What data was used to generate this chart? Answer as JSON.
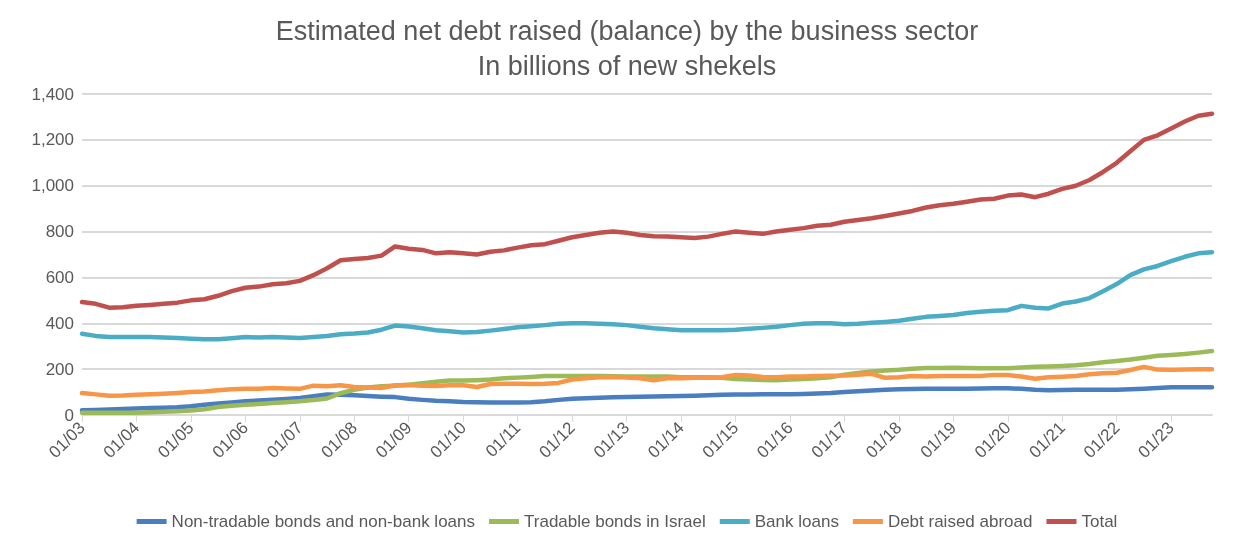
{
  "chart_data": {
    "type": "line",
    "title": "Estimated net debt raised (balance) by the business sector",
    "subtitle": "In billions of new shekels",
    "categories": [
      "01/03",
      null,
      null,
      null,
      "01/04",
      null,
      null,
      null,
      "01/05",
      null,
      null,
      null,
      "01/06",
      null,
      null,
      null,
      "01/07",
      null,
      null,
      null,
      "01/08",
      null,
      null,
      null,
      "01/09",
      null,
      null,
      null,
      "01/10",
      null,
      null,
      null,
      "01/11",
      null,
      null,
      null,
      "01/12",
      null,
      null,
      null,
      "01/13",
      null,
      null,
      null,
      "01/14",
      null,
      null,
      null,
      "01/15",
      null,
      null,
      null,
      "01/16",
      null,
      null,
      null,
      "01/17",
      null,
      null,
      null,
      "01/18",
      null,
      null,
      null,
      "01/19",
      null,
      null,
      null,
      "01/20",
      null,
      null,
      null,
      "01/21",
      null,
      null,
      null,
      "01/22",
      null,
      null,
      null,
      "01/23",
      null,
      null,
      null
    ],
    "series": [
      {
        "name": "Non-tradable bonds and non-bank loans",
        "color": "#4a7ebf",
        "values": [
          21,
          22,
          24,
          26,
          28,
          30,
          32,
          34,
          38,
          45,
          50,
          55,
          60,
          63,
          66,
          70,
          74,
          82,
          89,
          88,
          86,
          83,
          80,
          78,
          71,
          66,
          62,
          60,
          57,
          56,
          55,
          54,
          54,
          56,
          60,
          66,
          71,
          73,
          75,
          77,
          79,
          80,
          81,
          82,
          83,
          84,
          86,
          88,
          89,
          89,
          90,
          90,
          90,
          92,
          94,
          96,
          100,
          104,
          107,
          110,
          112,
          113,
          114,
          114,
          114,
          115,
          116,
          117,
          117,
          114,
          110,
          108,
          109,
          110,
          110,
          110,
          110,
          112,
          115,
          118,
          121,
          121,
          121,
          121
        ]
      },
      {
        "name": "Tradable bonds in Israel",
        "color": "#9bbb59",
        "values": [
          10,
          10,
          10,
          10,
          10,
          12,
          14,
          16,
          20,
          25,
          35,
          40,
          45,
          48,
          52,
          56,
          60,
          65,
          72,
          95,
          110,
          120,
          125,
          128,
          132,
          138,
          145,
          150,
          150,
          152,
          155,
          160,
          163,
          166,
          170,
          170,
          170,
          170,
          170,
          169,
          168,
          168,
          168,
          168,
          165,
          165,
          165,
          162,
          157,
          155,
          153,
          152,
          155,
          157,
          160,
          165,
          176,
          183,
          190,
          194,
          197,
          202,
          205,
          205,
          206,
          205,
          204,
          204,
          204,
          207,
          210,
          212,
          214,
          217,
          222,
          230,
          236,
          242,
          250,
          258,
          262,
          266,
          272,
          279
        ]
      },
      {
        "name": "Bank loans",
        "color": "#4bacc6",
        "values": [
          354,
          345,
          340,
          340,
          340,
          340,
          338,
          336,
          333,
          330,
          330,
          335,
          340,
          338,
          340,
          338,
          336,
          340,
          345,
          352,
          355,
          360,
          372,
          390,
          386,
          378,
          370,
          365,
          360,
          362,
          368,
          375,
          383,
          387,
          392,
          398,
          400,
          400,
          398,
          396,
          392,
          385,
          378,
          374,
          370,
          370,
          370,
          370,
          372,
          376,
          380,
          385,
          392,
          398,
          400,
          400,
          396,
          398,
          402,
          406,
          411,
          420,
          428,
          432,
          436,
          445,
          450,
          455,
          457,
          476,
          468,
          465,
          486,
          495,
          510,
          540,
          571,
          610,
          635,
          650,
          671,
          690,
          705,
          710
        ]
      },
      {
        "name": "Debt raised abroad",
        "color": "#f79646",
        "values": [
          96,
          90,
          84,
          85,
          88,
          90,
          93,
          96,
          100,
          103,
          108,
          112,
          114,
          115,
          118,
          116,
          114,
          128,
          125,
          130,
          122,
          120,
          118,
          130,
          131,
          128,
          126,
          130,
          130,
          122,
          135,
          136,
          136,
          135,
          136,
          140,
          155,
          160,
          165,
          166,
          164,
          160,
          152,
          160,
          160,
          162,
          162,
          165,
          175,
          172,
          166,
          165,
          168,
          168,
          170,
          171,
          172,
          176,
          180,
          162,
          165,
          170,
          168,
          170,
          170,
          170,
          170,
          175,
          174,
          168,
          158,
          165,
          167,
          170,
          178,
          182,
          184,
          196,
          210,
          198,
          197,
          198,
          200,
          200
        ]
      },
      {
        "name": "Total",
        "color": "#c0504d",
        "values": [
          493,
          485,
          468,
          470,
          476,
          480,
          485,
          490,
          500,
          505,
          520,
          540,
          555,
          560,
          570,
          575,
          585,
          610,
          640,
          675,
          680,
          685,
          695,
          735,
          725,
          720,
          705,
          710,
          705,
          700,
          712,
          718,
          730,
          740,
          745,
          760,
          775,
          785,
          795,
          800,
          795,
          785,
          780,
          778,
          775,
          772,
          778,
          790,
          800,
          795,
          790,
          800,
          808,
          815,
          825,
          830,
          843,
          850,
          858,
          868,
          879,
          890,
          905,
          915,
          921,
          930,
          940,
          943,
          957,
          962,
          950,
          965,
          986,
          1000,
          1025,
          1060,
          1100,
          1150,
          1200,
          1220,
          1250,
          1280,
          1305,
          1314
        ]
      }
    ],
    "ylim": [
      0,
      1400
    ],
    "yticks": [
      0,
      200,
      400,
      600,
      800,
      {
        "value": 1000,
        "label": "1,000"
      },
      {
        "value": 1200,
        "label": "1,200"
      },
      {
        "value": 1400,
        "label": "1,400"
      }
    ],
    "grid": "y",
    "legend": "bottom",
    "marker": "none",
    "line_style": "solid"
  }
}
